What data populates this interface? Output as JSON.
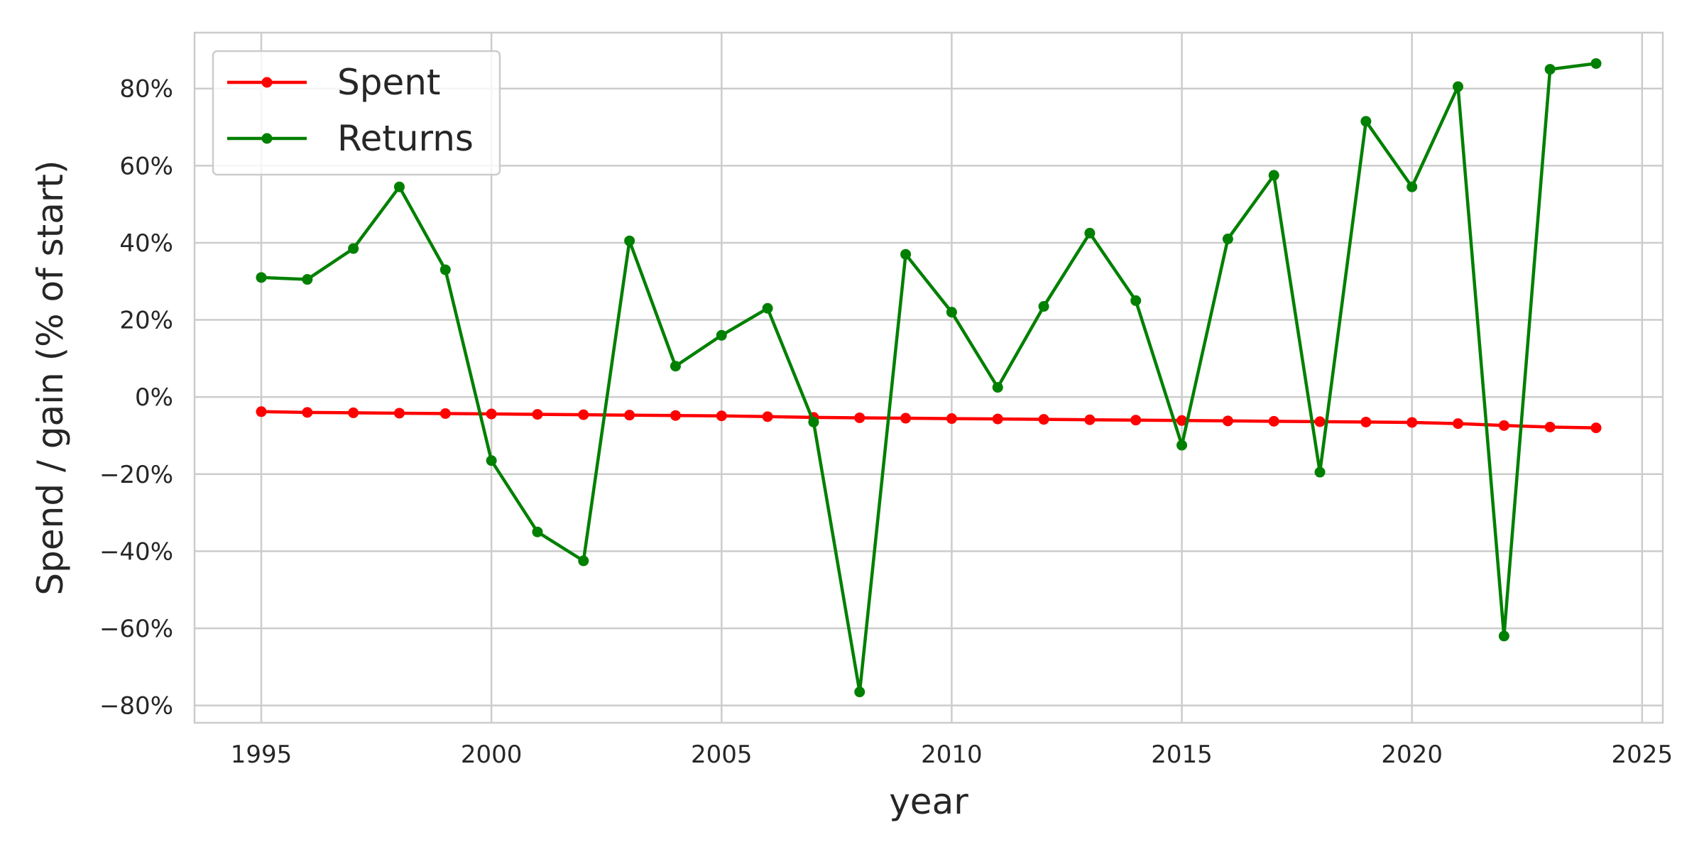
{
  "chart_data": {
    "type": "line",
    "xlabel": "year",
    "ylabel": "Spend / gain (% of start)",
    "xlim": [
      1993.55,
      2025.45
    ],
    "ylim": [
      -84.5,
      94.5
    ],
    "x_ticks": [
      1995,
      2000,
      2005,
      2010,
      2015,
      2020,
      2025
    ],
    "y_ticks": [
      -80,
      -60,
      -40,
      -20,
      0,
      20,
      40,
      60,
      80
    ],
    "y_tick_labels": [
      "−80%",
      "−60%",
      "−40%",
      "−20%",
      "0%",
      "20%",
      "40%",
      "60%",
      "80%"
    ],
    "grid": true,
    "legend_position": "top-left",
    "x": [
      1995,
      1996,
      1997,
      1998,
      1999,
      2000,
      2001,
      2002,
      2003,
      2004,
      2005,
      2006,
      2007,
      2008,
      2009,
      2010,
      2011,
      2012,
      2013,
      2014,
      2015,
      2016,
      2017,
      2018,
      2019,
      2020,
      2021,
      2022,
      2023,
      2024
    ],
    "series": [
      {
        "name": "Spent",
        "color": "#ff0000",
        "values": [
          -3.8,
          -4.0,
          -4.1,
          -4.2,
          -4.3,
          -4.4,
          -4.5,
          -4.6,
          -4.7,
          -4.8,
          -4.9,
          -5.1,
          -5.3,
          -5.4,
          -5.5,
          -5.6,
          -5.7,
          -5.8,
          -5.9,
          -6.0,
          -6.1,
          -6.2,
          -6.3,
          -6.4,
          -6.5,
          -6.6,
          -6.9,
          -7.4,
          -7.8,
          -8.0
        ]
      },
      {
        "name": "Returns",
        "color": "#008000",
        "values": [
          31,
          30.5,
          38.5,
          54.5,
          33,
          -16.5,
          -35,
          -42.5,
          40.5,
          8,
          16,
          23,
          -6.5,
          -76.5,
          37,
          22,
          2.5,
          23.5,
          42.5,
          25,
          -12.5,
          41,
          57.5,
          -19.5,
          71.5,
          54.5,
          80.5,
          -62,
          85,
          86.5
        ]
      }
    ]
  }
}
